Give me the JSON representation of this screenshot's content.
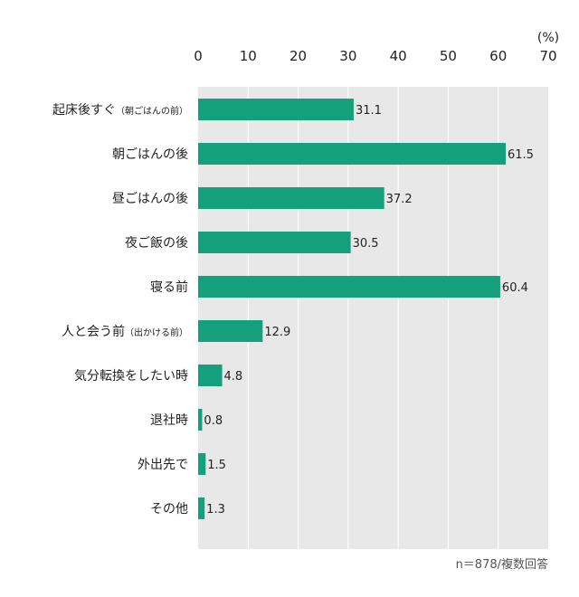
{
  "chart_data": {
    "type": "bar",
    "orientation": "horizontal",
    "unit": "(%)",
    "x_ticks": [
      "0",
      "10",
      "20",
      "30",
      "40",
      "50",
      "60",
      "70"
    ],
    "xlim": [
      0,
      70
    ],
    "grid": true,
    "categories": [
      {
        "main": "起床後すぐ",
        "note": "（朝ごはんの前）"
      },
      {
        "main": "朝ごはんの後",
        "note": ""
      },
      {
        "main": "昼ごはんの後",
        "note": ""
      },
      {
        "main": "夜ご飯の後",
        "note": ""
      },
      {
        "main": "寝る前",
        "note": ""
      },
      {
        "main": "人と会う前",
        "note": "（出かける前）"
      },
      {
        "main": "気分転換をしたい時",
        "note": ""
      },
      {
        "main": "退社時",
        "note": ""
      },
      {
        "main": "外出先で",
        "note": ""
      },
      {
        "main": "その他",
        "note": ""
      }
    ],
    "values": [
      31.1,
      61.5,
      37.2,
      30.5,
      60.4,
      12.9,
      4.8,
      0.8,
      1.5,
      1.3
    ],
    "value_labels": [
      "31.1",
      "61.5",
      "37.2",
      "30.5",
      "60.4",
      "12.9",
      "4.8",
      "0.8",
      "1.5",
      "1.3"
    ],
    "bar_color": "#13a07a",
    "plot_background": "#e8e8e8",
    "grid_color": "#ffffff",
    "footnote": "n＝878/複数回答"
  }
}
